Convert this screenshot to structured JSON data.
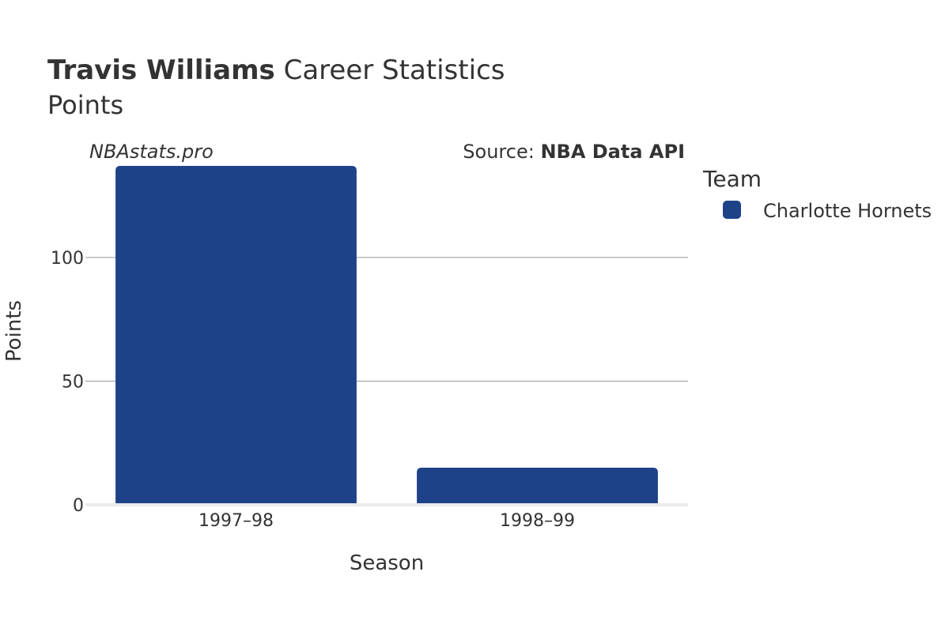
{
  "title": {
    "bold": "Travis Williams",
    "rest": " Career Statistics",
    "subtitle": "Points"
  },
  "watermark": "NBAstats.pro",
  "source": {
    "prefix": "Source: ",
    "name": "NBA Data API"
  },
  "legend": {
    "title": "Team",
    "items": [
      {
        "label": "Charlotte Hornets",
        "color": "#1e4288"
      }
    ]
  },
  "chart_data": {
    "type": "bar",
    "categories": [
      "1997–98",
      "1998–99"
    ],
    "series": [
      {
        "name": "Charlotte Hornets",
        "values": [
          137,
          15
        ],
        "color": "#1e4288"
      }
    ],
    "xlabel": "Season",
    "ylabel": "Points",
    "ylim": [
      0,
      145
    ],
    "yticks": [
      0,
      50,
      100
    ],
    "grid": true,
    "legend_position": "right"
  }
}
